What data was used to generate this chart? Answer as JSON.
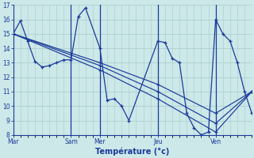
{
  "background_color": "#cce8e8",
  "grid_color": "#a8cccc",
  "line_color": "#1a3a9a",
  "ylim": [
    8,
    17
  ],
  "yticks": [
    8,
    9,
    10,
    11,
    12,
    13,
    14,
    15,
    16,
    17
  ],
  "xlabel": "Température (°c)",
  "day_labels": [
    "Mar",
    "Sam",
    "Mer",
    "Jeu",
    "Ven"
  ],
  "day_positions": [
    0,
    24,
    36,
    60,
    84
  ],
  "vline_positions": [
    24,
    36,
    60,
    84
  ],
  "total_points": 100,
  "line1_x": [
    0,
    3,
    6,
    9,
    12,
    15,
    18,
    21,
    24,
    27,
    30,
    36,
    39,
    42,
    45,
    48,
    60,
    63,
    66,
    69,
    72,
    75,
    78,
    81,
    84,
    87,
    90,
    93,
    96,
    99
  ],
  "line1_y": [
    15.0,
    15.9,
    14.5,
    13.1,
    12.7,
    12.8,
    13.0,
    13.2,
    13.2,
    16.2,
    16.8,
    14.0,
    10.4,
    10.5,
    10.0,
    9.0,
    14.5,
    14.4,
    13.3,
    13.0,
    9.5,
    8.5,
    8.0,
    8.2,
    16.0,
    15.0,
    14.5,
    13.0,
    11.0,
    9.5
  ],
  "line2_x": [
    0,
    36,
    60,
    84,
    99
  ],
  "line2_y": [
    15.0,
    12.5,
    10.5,
    8.2,
    11.0
  ],
  "line3_x": [
    0,
    36,
    60,
    84,
    99
  ],
  "line3_y": [
    15.0,
    12.8,
    11.0,
    8.8,
    11.0
  ],
  "line4_x": [
    0,
    36,
    60,
    84,
    99
  ],
  "line4_y": [
    15.0,
    13.0,
    11.5,
    9.5,
    11.0
  ]
}
